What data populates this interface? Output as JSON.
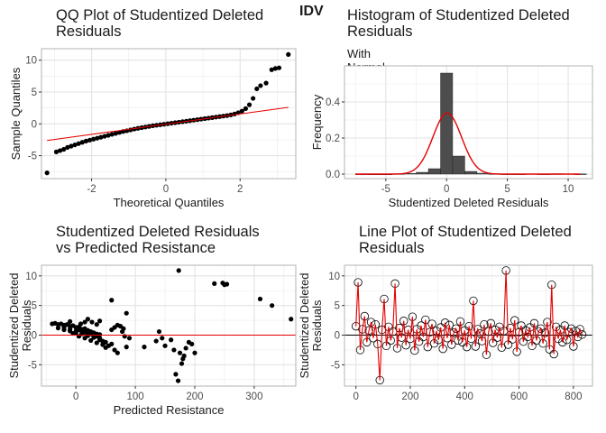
{
  "main_title": "IDV",
  "colors": {
    "grid": "#ebebeb",
    "border": "#b3b3b3",
    "red": "#e60000",
    "bar": "#4d4d4d",
    "point": "#000000"
  },
  "chart_data": [
    {
      "type": "scatter",
      "title": "QQ Plot of Studentized Deleted\nResiduals",
      "xlabel": "Theoretical Quantiles",
      "ylabel": "Sample Quantiles",
      "xlim": [
        -3.35,
        3.5
      ],
      "ylim": [
        -8.6,
        11.8
      ],
      "xticks": [
        -2,
        0,
        2
      ],
      "yticks": [
        -5,
        0,
        5,
        10
      ],
      "ytick_labels": [
        "-5",
        "0",
        "5",
        "10"
      ],
      "grid": true,
      "reference_line": {
        "slope": 0.8,
        "intercept": -0.05,
        "x_range": [
          -3.2,
          3.3
        ]
      },
      "points": [
        [
          -3.2,
          -7.7
        ],
        [
          -2.95,
          -4.4
        ],
        [
          -2.85,
          -4.2
        ],
        [
          -2.75,
          -4.0
        ],
        [
          -2.65,
          -3.7
        ],
        [
          -2.55,
          -3.5
        ],
        [
          -2.45,
          -3.3
        ],
        [
          -2.35,
          -3.1
        ],
        [
          -2.25,
          -2.9
        ],
        [
          -2.15,
          -2.7
        ],
        [
          -2.05,
          -2.55
        ],
        [
          -1.95,
          -2.4
        ],
        [
          -1.85,
          -2.25
        ],
        [
          -1.75,
          -2.1
        ],
        [
          -1.65,
          -1.95
        ],
        [
          -1.55,
          -1.8
        ],
        [
          -1.45,
          -1.65
        ],
        [
          -1.35,
          -1.5
        ],
        [
          -1.25,
          -1.35
        ],
        [
          -1.15,
          -1.2
        ],
        [
          -1.05,
          -1.08
        ],
        [
          -0.95,
          -0.95
        ],
        [
          -0.85,
          -0.82
        ],
        [
          -0.75,
          -0.7
        ],
        [
          -0.65,
          -0.6
        ],
        [
          -0.55,
          -0.5
        ],
        [
          -0.45,
          -0.4
        ],
        [
          -0.35,
          -0.3
        ],
        [
          -0.25,
          -0.22
        ],
        [
          -0.15,
          -0.14
        ],
        [
          -0.05,
          -0.06
        ],
        [
          0.05,
          0.02
        ],
        [
          0.15,
          0.1
        ],
        [
          0.25,
          0.18
        ],
        [
          0.35,
          0.26
        ],
        [
          0.45,
          0.34
        ],
        [
          0.55,
          0.42
        ],
        [
          0.65,
          0.5
        ],
        [
          0.75,
          0.58
        ],
        [
          0.85,
          0.66
        ],
        [
          0.95,
          0.74
        ],
        [
          1.05,
          0.82
        ],
        [
          1.15,
          0.9
        ],
        [
          1.25,
          0.98
        ],
        [
          1.35,
          1.06
        ],
        [
          1.45,
          1.14
        ],
        [
          1.55,
          1.22
        ],
        [
          1.65,
          1.3
        ],
        [
          1.75,
          1.4
        ],
        [
          1.85,
          1.55
        ],
        [
          1.95,
          1.75
        ],
        [
          2.05,
          2.0
        ],
        [
          2.15,
          2.4
        ],
        [
          2.25,
          3.0
        ],
        [
          2.35,
          4.0
        ],
        [
          2.45,
          5.5
        ],
        [
          2.55,
          6.0
        ],
        [
          2.7,
          6.4
        ],
        [
          2.85,
          8.5
        ],
        [
          2.95,
          8.7
        ],
        [
          3.05,
          8.8
        ],
        [
          3.3,
          10.9
        ]
      ]
    },
    {
      "type": "histogram",
      "title": "Histogram of Studentized Deleted\nResiduals",
      "subtitle": "With Normal PDF Curve Overlaid in Red",
      "xlabel": "Studentized Deleted Residuals",
      "ylabel": "Frequency",
      "xlim": [
        -8.4,
        12
      ],
      "ylim": [
        -0.025,
        0.6
      ],
      "xticks": [
        -5,
        0,
        5,
        10
      ],
      "yticks": [
        0.0,
        0.2,
        0.4
      ],
      "ytick_labels": [
        "0.0",
        "0.2",
        "0.4"
      ],
      "grid": true,
      "bin_width": 1,
      "bins": [
        {
          "x0": -7.5,
          "value": 0.001
        },
        {
          "x0": -6.5,
          "value": 0.0
        },
        {
          "x0": -5.5,
          "value": 0.0
        },
        {
          "x0": -4.5,
          "value": 0.002
        },
        {
          "x0": -3.5,
          "value": 0.004
        },
        {
          "x0": -2.5,
          "value": 0.01
        },
        {
          "x0": -1.5,
          "value": 0.03
        },
        {
          "x0": -0.5,
          "value": 0.56
        },
        {
          "x0": 0.5,
          "value": 0.1
        },
        {
          "x0": 1.5,
          "value": 0.015
        },
        {
          "x0": 2.5,
          "value": 0.005
        },
        {
          "x0": 3.5,
          "value": 0.002
        },
        {
          "x0": 4.5,
          "value": 0.001
        },
        {
          "x0": 5.5,
          "value": 0.001
        },
        {
          "x0": 7.5,
          "value": 0.001
        },
        {
          "x0": 8.5,
          "value": 0.002
        },
        {
          "x0": 10.5,
          "value": 0.001
        }
      ],
      "curve": {
        "type": "normal_pdf",
        "mean": 0.05,
        "sd": 1.18,
        "x_range": [
          -7.5,
          11
        ]
      }
    },
    {
      "type": "scatter",
      "title": "Studentized Deleted Residuals\nvs Predicted Resistance",
      "xlabel": "Predicted Resistance",
      "ylabel": "Studentized Deleted\nResiduals",
      "xlim": [
        -58,
        370
      ],
      "ylim": [
        -8.6,
        11.8
      ],
      "xticks": [
        0,
        100,
        200,
        300
      ],
      "yticks": [
        -5,
        0,
        5,
        10
      ],
      "ytick_labels": [
        "-5",
        "0",
        "5",
        "10"
      ],
      "grid": true,
      "hline": 0,
      "points": [
        [
          -40,
          1.9
        ],
        [
          -35,
          2.0
        ],
        [
          -30,
          1.8
        ],
        [
          -25,
          1.9
        ],
        [
          -20,
          1.7
        ],
        [
          -15,
          1.8
        ],
        [
          -10,
          1.5
        ],
        [
          -5,
          1.6
        ],
        [
          0,
          1.3
        ],
        [
          5,
          1.4
        ],
        [
          10,
          1.0
        ],
        [
          15,
          1.1
        ],
        [
          20,
          0.8
        ],
        [
          25,
          0.6
        ],
        [
          30,
          0.4
        ],
        [
          35,
          0.2
        ],
        [
          40,
          0.1
        ],
        [
          -30,
          1.2
        ],
        [
          -20,
          0.9
        ],
        [
          -10,
          0.7
        ],
        [
          0,
          0.4
        ],
        [
          10,
          0.2
        ],
        [
          20,
          -0.1
        ],
        [
          30,
          -0.4
        ],
        [
          40,
          -0.8
        ],
        [
          50,
          -1.2
        ],
        [
          -5,
          0.3
        ],
        [
          5,
          -0.2
        ],
        [
          15,
          -0.5
        ],
        [
          25,
          -0.9
        ],
        [
          35,
          -1.3
        ],
        [
          45,
          -1.6
        ],
        [
          50,
          -2.1
        ],
        [
          55,
          -1.8
        ],
        [
          -20,
          1.3
        ],
        [
          -10,
          1.0
        ],
        [
          0,
          0.7
        ],
        [
          10,
          0.4
        ],
        [
          20,
          0.1
        ],
        [
          30,
          -0.2
        ],
        [
          40,
          -0.5
        ],
        [
          45,
          -1.0
        ],
        [
          5,
          0.9
        ],
        [
          15,
          0.5
        ],
        [
          25,
          0.2
        ],
        [
          35,
          -0.2
        ],
        [
          60,
          -1.5
        ],
        [
          65,
          -2.5
        ],
        [
          70,
          -3.0
        ],
        [
          60,
          0.9
        ],
        [
          65,
          1.3
        ],
        [
          70,
          1.7
        ],
        [
          75,
          1.5
        ],
        [
          80,
          1.1
        ],
        [
          78,
          0.6
        ],
        [
          82,
          -0.2
        ],
        [
          85,
          -2.0
        ],
        [
          90,
          -0.5
        ],
        [
          60,
          5.9
        ],
        [
          20,
          2.7
        ],
        [
          27,
          2.2
        ],
        [
          35,
          1.8
        ],
        [
          40,
          2.4
        ],
        [
          15,
          2.2
        ],
        [
          8,
          1.9
        ],
        [
          -10,
          2.3
        ],
        [
          85,
          3.7
        ],
        [
          115,
          -2.0
        ],
        [
          135,
          -1.0
        ],
        [
          140,
          0.6
        ],
        [
          145,
          -0.5
        ],
        [
          150,
          -1.8
        ],
        [
          160,
          -0.8
        ],
        [
          165,
          -2.5
        ],
        [
          168,
          -6.6
        ],
        [
          172,
          -7.7
        ],
        [
          175,
          -3.0
        ],
        [
          178,
          -4.8
        ],
        [
          180,
          -4.0
        ],
        [
          182,
          -3.5
        ],
        [
          185,
          -2.2
        ],
        [
          190,
          -1.2
        ],
        [
          195,
          -1.5
        ],
        [
          200,
          -3.0
        ],
        [
          173,
          10.9
        ],
        [
          233,
          8.7
        ],
        [
          247,
          8.8
        ],
        [
          250,
          8.5
        ],
        [
          254,
          8.6
        ],
        [
          310,
          6.1
        ],
        [
          330,
          5.0
        ],
        [
          362,
          2.7
        ]
      ]
    },
    {
      "type": "line",
      "title": "Line Plot of Studentized Deleted\nResiduals",
      "xlabel": "",
      "ylabel": "Studentized Deleted\nResiduals",
      "xlim": [
        -42,
        870
      ],
      "ylim": [
        -8.6,
        11.8
      ],
      "xticks": [
        0,
        200,
        400,
        600,
        800
      ],
      "yticks": [
        -5,
        0,
        5,
        10
      ],
      "ytick_labels": [
        "-5",
        "0",
        "5",
        "10"
      ],
      "grid": true,
      "hline": 0,
      "series": [
        {
          "x": [
            0,
            8,
            16,
            24,
            32,
            40,
            48,
            56,
            64,
            72,
            80,
            88,
            96,
            104,
            112,
            120,
            128,
            136,
            144,
            152,
            160,
            168,
            176,
            184,
            192,
            200,
            208,
            216,
            224,
            232,
            240,
            248,
            256,
            264,
            272,
            280,
            288,
            296,
            304,
            312,
            320,
            328,
            336,
            344,
            352,
            360,
            368,
            376,
            384,
            392,
            400,
            408,
            416,
            424,
            432,
            440,
            448,
            456,
            464,
            472,
            480,
            488,
            496,
            504,
            512,
            520,
            528,
            536,
            544,
            552,
            560,
            568,
            576,
            584,
            592,
            600,
            608,
            616,
            624,
            632,
            640,
            648,
            656,
            664,
            672,
            680,
            688,
            696,
            704,
            712,
            720,
            728,
            736,
            744,
            752,
            760,
            768,
            776,
            784,
            792,
            800,
            808,
            816,
            824,
            832
          ],
          "y": [
            1.5,
            8.9,
            -2.5,
            1.0,
            3.2,
            -1.2,
            0.8,
            2.2,
            -0.5,
            1.8,
            -1.5,
            -7.6,
            0.9,
            6.1,
            -1.8,
            1.4,
            -0.9,
            0.6,
            8.7,
            -2.2,
            1.2,
            -0.4,
            2.4,
            -1.7,
            0.9,
            -0.6,
            3.1,
            -2.6,
            1.0,
            -1.1,
            1.6,
            -0.3,
            2.6,
            -2.0,
            0.5,
            1.9,
            -1.4,
            0.7,
            -0.8,
            1.3,
            -2.3,
            2.1,
            -0.5,
            1.7,
            -1.6,
            0.4,
            1.1,
            -0.9,
            2.3,
            -1.2,
            0.8,
            -2.0,
            1.5,
            -0.6,
            5.8,
            -1.9,
            1.0,
            0.3,
            -1.0,
            1.8,
            -3.3,
            0.6,
            2.0,
            -1.3,
            0.9,
            -0.4,
            1.4,
            -2.1,
            0.7,
            10.9,
            -1.6,
            1.2,
            -0.7,
            2.5,
            -2.8,
            0.5,
            1.6,
            -1.1,
            0.8,
            -0.3,
            1.3,
            -1.8,
            2.0,
            -0.9,
            0.6,
            1.1,
            -1.4,
            0.4,
            2.2,
            -2.4,
            8.5,
            -3.2,
            1.4,
            -0.6,
            0.9,
            -1.2,
            1.6,
            -0.8,
            0.5,
            1.1,
            -1.9,
            0.7,
            -0.3,
            1.0,
            0.1
          ]
        }
      ]
    }
  ]
}
